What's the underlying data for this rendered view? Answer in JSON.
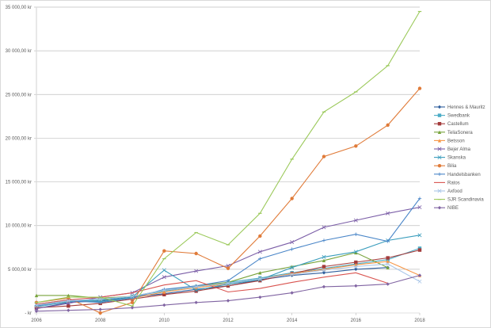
{
  "chart_data": {
    "type": "line",
    "title": "",
    "xlabel": "",
    "ylabel": "",
    "ylim": [
      0,
      35000
    ],
    "grid": true,
    "legend_position": "right",
    "x": [
      2006,
      2007,
      2008,
      2009,
      2010,
      2011,
      2012,
      2013,
      2014,
      2015,
      2016,
      2017,
      2018
    ],
    "x_tick_labels": [
      "2006",
      "2008",
      "2010",
      "2012",
      "2014",
      "2016",
      "2018"
    ],
    "y_tick_labels": [
      "-   kr",
      "5 000,00 kr",
      "10 000,00 kr",
      "15 000,00 kr",
      "20 000,00 kr",
      "25 000,00 kr",
      "30 000,00 kr",
      "35 000,00 kr"
    ],
    "series": [
      {
        "name": "Hennes & Mauritz",
        "color": "#2e5d9c",
        "marker": "diamond",
        "values": [
          500,
          1200,
          1400,
          1800,
          2200,
          2700,
          3100,
          3800,
          4300,
          4600,
          5000,
          5200,
          null
        ]
      },
      {
        "name": "Swedbank",
        "color": "#4bacc6",
        "marker": "square",
        "values": [
          700,
          1300,
          1500,
          1900,
          2500,
          3000,
          3500,
          4000,
          4600,
          5100,
          5600,
          6100,
          7400
        ]
      },
      {
        "name": "Castellum",
        "color": "#a33b3b",
        "marker": "square",
        "values": [
          600,
          800,
          1100,
          1600,
          2100,
          2500,
          3100,
          3700,
          4500,
          5300,
          5800,
          6300,
          7200
        ]
      },
      {
        "name": "TeliaSonera",
        "color": "#77a33a",
        "marker": "triangle",
        "values": [
          2000,
          2000,
          1700,
          1900,
          2600,
          3100,
          3500,
          4600,
          5300,
          6000,
          6900,
          5200,
          null
        ]
      },
      {
        "name": "Betsson",
        "color": "#f79646",
        "marker": "triangle",
        "values": [
          800,
          1400,
          1300,
          1700,
          2400,
          2900,
          3300,
          3900,
          4500,
          5000,
          5500,
          5900,
          4300
        ]
      },
      {
        "name": "Bejer Alma",
        "color": "#7b5ea7",
        "marker": "x",
        "values": [
          500,
          1100,
          1800,
          2300,
          4100,
          4800,
          5400,
          7000,
          8100,
          9800,
          10600,
          11400,
          12100
        ]
      },
      {
        "name": "Skanska",
        "color": "#3a9dbd",
        "marker": "x",
        "values": [
          1000,
          1500,
          1300,
          1800,
          4900,
          2600,
          3300,
          3800,
          5200,
          6400,
          7000,
          8300,
          8900
        ]
      },
      {
        "name": "Bilia",
        "color": "#e07b39",
        "marker": "circle",
        "values": [
          1200,
          1700,
          0,
          1200,
          7100,
          6800,
          5100,
          8800,
          13100,
          17900,
          19100,
          21500,
          25700
        ]
      },
      {
        "name": "Handelsbanken",
        "color": "#4a86c8",
        "marker": "plus",
        "values": [
          800,
          1400,
          1200,
          1700,
          2700,
          3100,
          3700,
          6200,
          7300,
          8300,
          9000,
          8200,
          13100
        ]
      },
      {
        "name": "Ratos",
        "color": "#d9534f",
        "marker": "none",
        "values": [
          1000,
          1500,
          1800,
          2300,
          3200,
          3700,
          2400,
          2800,
          3500,
          4100,
          4600,
          3400,
          null
        ]
      },
      {
        "name": "Axfood",
        "color": "#a9c6e8",
        "marker": "x",
        "values": [
          900,
          1400,
          1600,
          1900,
          2600,
          3000,
          3400,
          3900,
          4400,
          4900,
          5300,
          5600,
          3600
        ]
      },
      {
        "name": "SJR Scandinavia",
        "color": "#9bc95a",
        "marker": "dash",
        "values": [
          1200,
          1800,
          1800,
          800,
          6200,
          9200,
          7800,
          11400,
          17600,
          23000,
          25300,
          28300,
          34500
        ]
      },
      {
        "name": "NIBE",
        "color": "#8064a2",
        "marker": "diamond",
        "values": [
          200,
          300,
          400,
          600,
          900,
          1200,
          1400,
          1800,
          2300,
          3000,
          3100,
          3300,
          4300
        ]
      }
    ]
  }
}
